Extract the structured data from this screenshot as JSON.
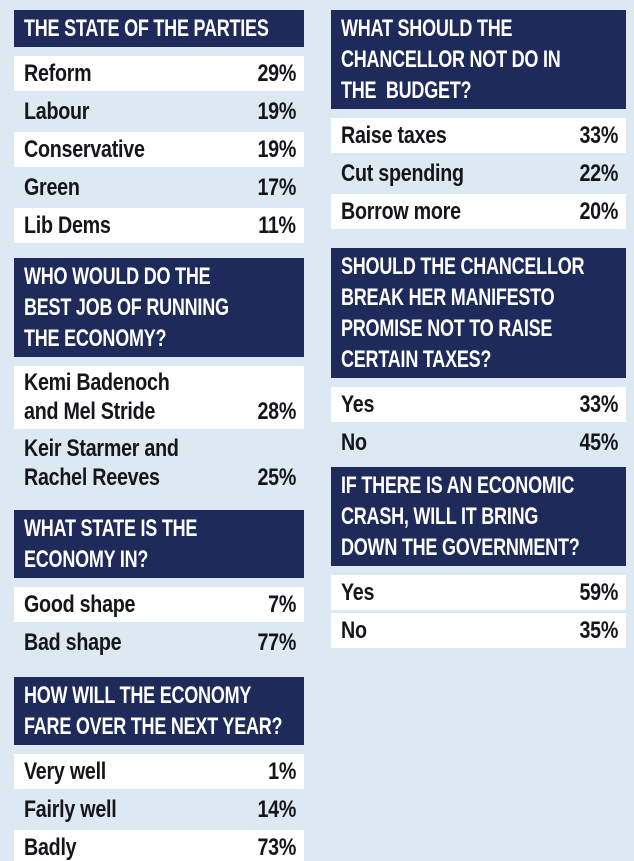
{
  "page": {
    "background": "#dce8f2",
    "header_bg": "#1e2a5a",
    "header_text_color": "#ffffff",
    "highlight_row_bg": "#ffffff",
    "row_text_color": "#16161a"
  },
  "columns": [
    {
      "tables": [
        {
          "title": "THE STATE OF THE PARTIES",
          "rows": [
            {
              "label": "Reform",
              "value": "29%"
            },
            {
              "label": "Labour",
              "value": "19%"
            },
            {
              "label": "Conservative",
              "value": "19%"
            },
            {
              "label": "Green",
              "value": "17%"
            },
            {
              "label": "Lib Dems",
              "value": "11%"
            }
          ]
        },
        {
          "title": "WHO WOULD DO THE\nBEST JOB OF RUNNING\nTHE ECONOMY?",
          "rows": [
            {
              "label": "Kemi Badenoch\nand Mel Stride",
              "value": "28%"
            },
            {
              "label": "Keir Starmer and\nRachel Reeves",
              "value": "25%"
            }
          ]
        },
        {
          "title": "WHAT STATE IS THE\nECONOMY IN?",
          "rows": [
            {
              "label": "Good shape",
              "value": "7%"
            },
            {
              "label": "Bad shape",
              "value": "77%"
            }
          ]
        },
        {
          "title": "HOW WILL THE ECONOMY\nFARE OVER THE NEXT YEAR?",
          "rows": [
            {
              "label": "Very well",
              "value": "1%"
            },
            {
              "label": "Fairly well",
              "value": "14%"
            },
            {
              "label": "Badly",
              "value": "73%"
            }
          ]
        }
      ]
    },
    {
      "tables": [
        {
          "title": "WHAT SHOULD THE\nCHANCELLOR NOT DO IN\nTHE  BUDGET?",
          "rows": [
            {
              "label": "Raise taxes",
              "value": "33%"
            },
            {
              "label": "Cut spending",
              "value": "22%"
            },
            {
              "label": "Borrow more",
              "value": "20%"
            }
          ]
        },
        {
          "title": "SHOULD THE CHANCELLOR\nBREAK HER MANIFESTO\nPROMISE NOT TO RAISE\nCERTAIN TAXES?",
          "rows": [
            {
              "label": "Yes",
              "value": "33%"
            },
            {
              "label": "No",
              "value": "45%"
            }
          ]
        },
        {
          "title": "IF THERE IS AN ECONOMIC\nCRASH, WILL IT BRING\nDOWN THE GOVERNMENT?",
          "rows": [
            {
              "label": "Yes",
              "value": "59%"
            },
            {
              "label": "No",
              "value": "35%"
            }
          ]
        }
      ]
    }
  ],
  "chart_data": [
    {
      "type": "table",
      "title": "THE STATE OF THE PARTIES",
      "categories": [
        "Reform",
        "Labour",
        "Conservative",
        "Green",
        "Lib Dems"
      ],
      "values": [
        29,
        19,
        19,
        17,
        11
      ],
      "unit": "%"
    },
    {
      "type": "table",
      "title": "WHO WOULD DO THE BEST JOB OF RUNNING THE ECONOMY?",
      "categories": [
        "Kemi Badenoch and Mel Stride",
        "Keir Starmer and Rachel Reeves"
      ],
      "values": [
        28,
        25
      ],
      "unit": "%"
    },
    {
      "type": "table",
      "title": "WHAT STATE IS THE ECONOMY IN?",
      "categories": [
        "Good shape",
        "Bad shape"
      ],
      "values": [
        7,
        77
      ],
      "unit": "%"
    },
    {
      "type": "table",
      "title": "HOW WILL THE ECONOMY FARE OVER THE NEXT YEAR?",
      "categories": [
        "Very well",
        "Fairly well",
        "Badly"
      ],
      "values": [
        1,
        14,
        73
      ],
      "unit": "%"
    },
    {
      "type": "table",
      "title": "WHAT SHOULD THE CHANCELLOR NOT DO IN THE BUDGET?",
      "categories": [
        "Raise taxes",
        "Cut spending",
        "Borrow more"
      ],
      "values": [
        33,
        22,
        20
      ],
      "unit": "%"
    },
    {
      "type": "table",
      "title": "SHOULD THE CHANCELLOR BREAK HER MANIFESTO PROMISE NOT TO RAISE CERTAIN TAXES?",
      "categories": [
        "Yes",
        "No"
      ],
      "values": [
        33,
        45
      ],
      "unit": "%"
    },
    {
      "type": "table",
      "title": "IF THERE IS AN ECONOMIC CRASH, WILL IT BRING DOWN THE GOVERNMENT?",
      "categories": [
        "Yes",
        "No"
      ],
      "values": [
        59,
        35
      ],
      "unit": "%"
    }
  ]
}
